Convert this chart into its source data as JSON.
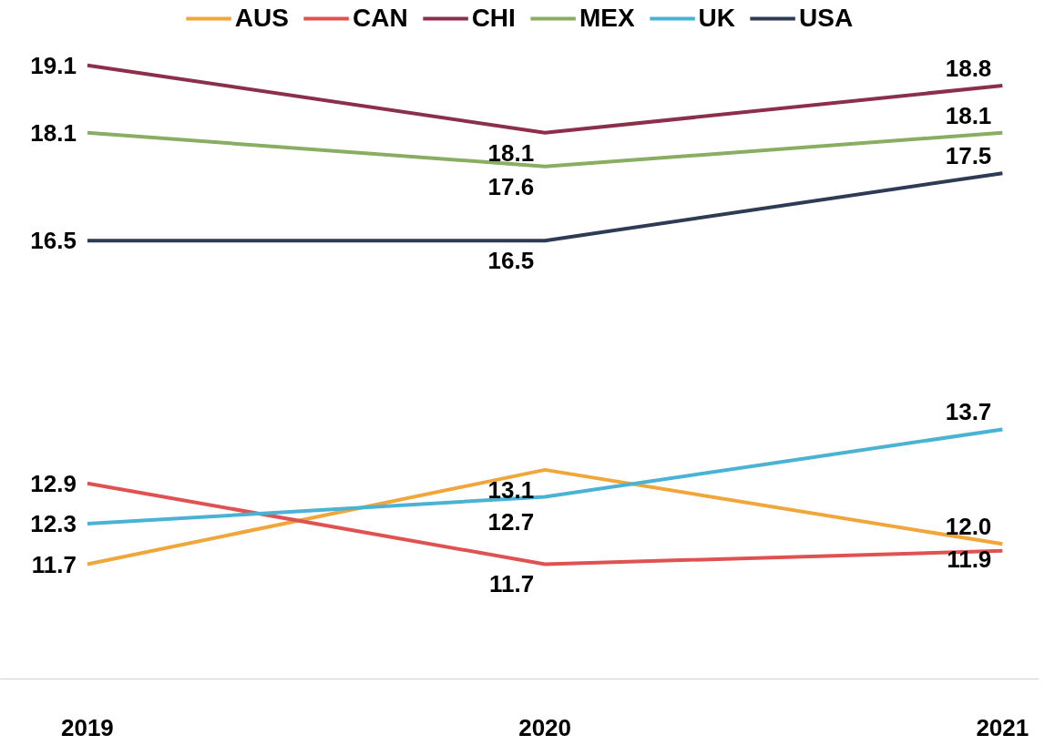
{
  "chart_data": {
    "type": "line",
    "categories": [
      "2019",
      "2020",
      "2021"
    ],
    "legend": "top",
    "grid": false,
    "marker": "none",
    "series": [
      {
        "name": "AUS",
        "color": "#f0a63a",
        "values": [
          11.7,
          13.1,
          12.0
        ],
        "value_labels": [
          "11.7",
          "13.1",
          "12.0"
        ]
      },
      {
        "name": "CAN",
        "color": "#e05252",
        "values": [
          12.9,
          11.7,
          11.9
        ],
        "value_labels": [
          "12.9",
          "11.7",
          "11.9"
        ]
      },
      {
        "name": "CHI",
        "color": "#8b2f4a",
        "values": [
          19.1,
          18.1,
          18.8
        ],
        "value_labels": [
          "19.1",
          "18.1",
          "18.8"
        ]
      },
      {
        "name": "MEX",
        "color": "#88ad63",
        "values": [
          18.1,
          17.6,
          18.1
        ],
        "value_labels": [
          "18.1",
          "17.6",
          "18.1"
        ]
      },
      {
        "name": "UK",
        "color": "#4ab3d4",
        "values": [
          12.3,
          12.7,
          13.7
        ],
        "value_labels": [
          "12.3",
          "12.7",
          "13.7"
        ]
      },
      {
        "name": "USA",
        "color": "#2e3b55",
        "values": [
          16.5,
          16.5,
          17.5
        ],
        "value_labels": [
          "16.5",
          "16.5",
          "17.5"
        ]
      }
    ]
  }
}
